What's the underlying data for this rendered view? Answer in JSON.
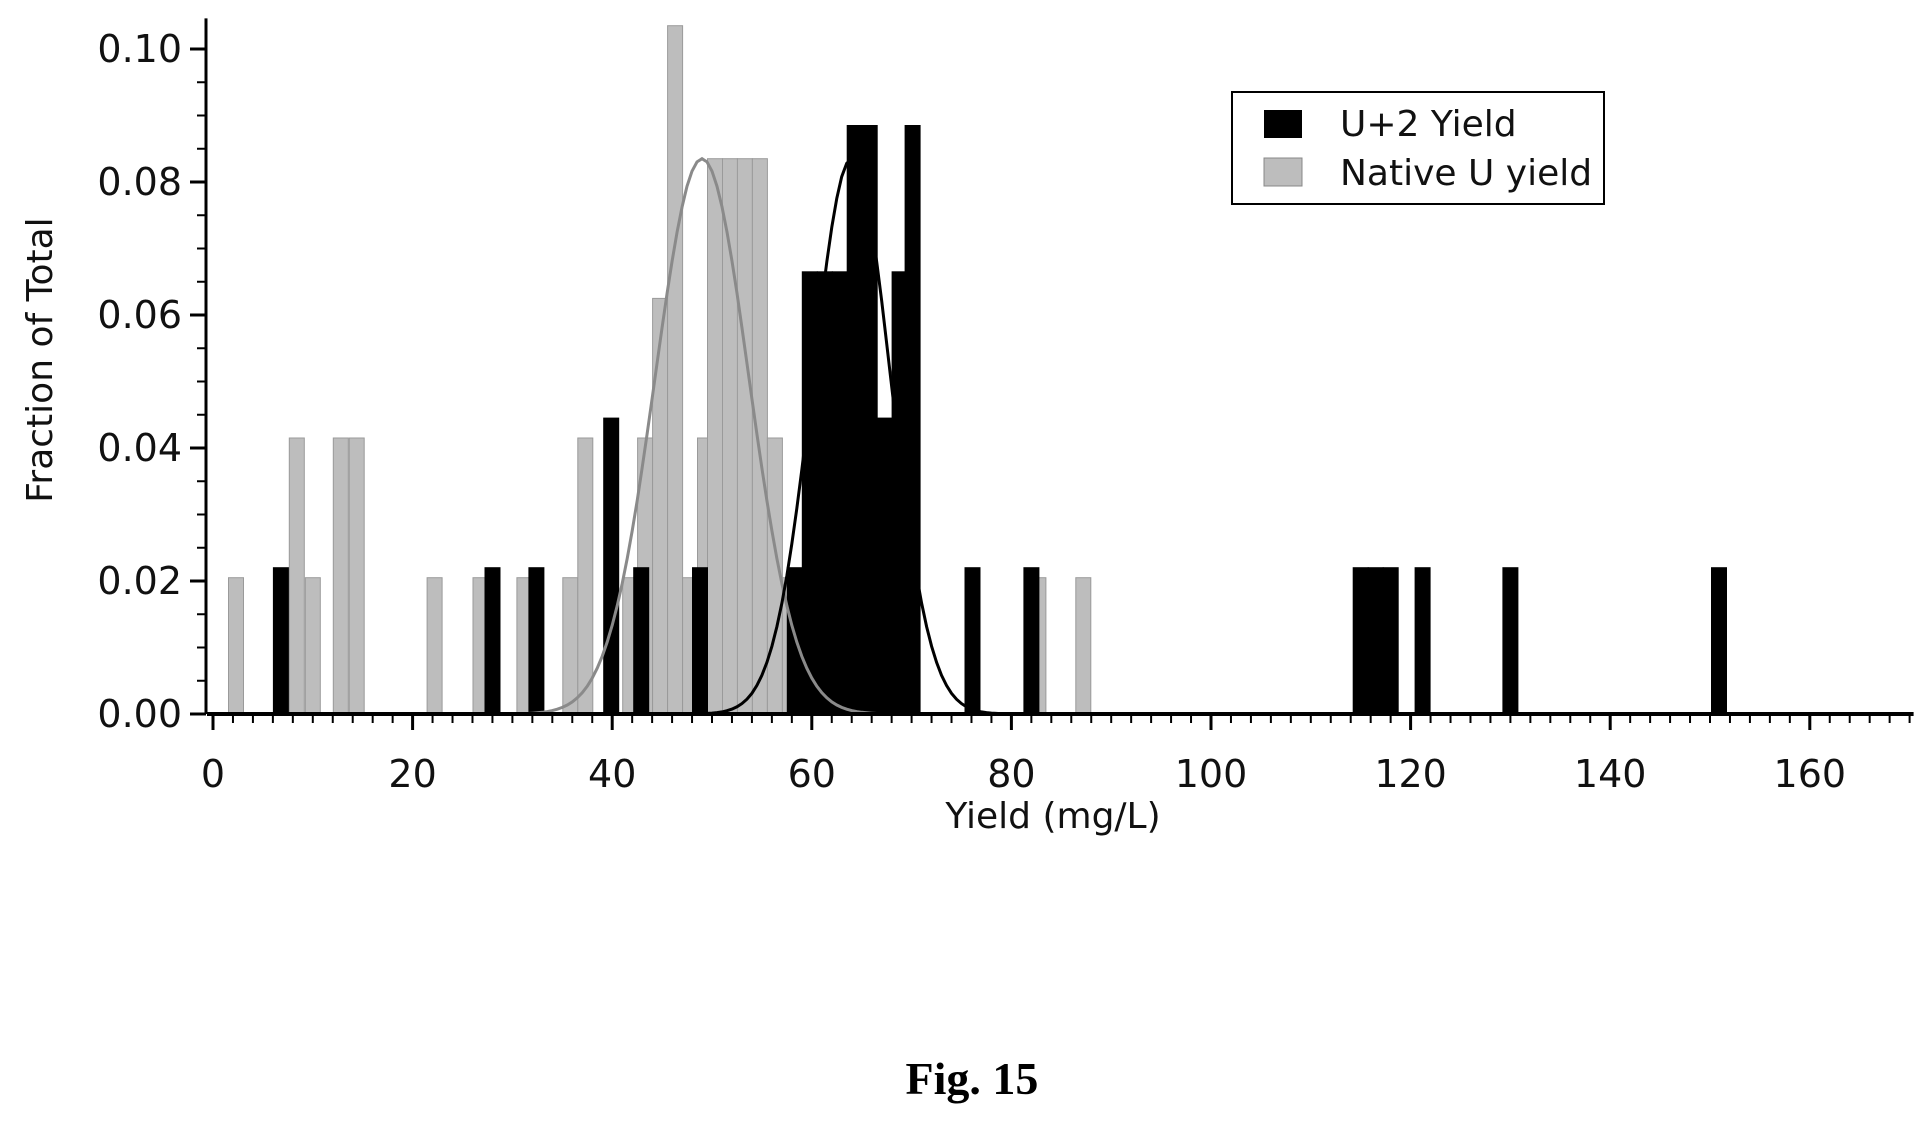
{
  "chart_data": {
    "type": "bar",
    "title": "",
    "xlabel": "Yield (mg/L)",
    "ylabel": "Fraction of Total",
    "xlim": [
      0,
      170
    ],
    "ylim": [
      0,
      0.104
    ],
    "x_ticks": [
      0,
      20,
      40,
      60,
      80,
      100,
      120,
      140,
      160
    ],
    "x_tick_labels": [
      "0",
      "20",
      "40",
      "60",
      "80",
      "100",
      "120",
      "140",
      "160"
    ],
    "y_ticks": [
      0.0,
      0.02,
      0.04,
      0.06,
      0.08,
      0.1
    ],
    "y_tick_labels": [
      "0.00",
      "0.02",
      "0.04",
      "0.06",
      "0.08",
      "0.10"
    ],
    "grid": false,
    "legend_position": "top-right",
    "series": [
      {
        "name": "Native U yield",
        "color": "#bdbdbd",
        "bin_width": 1.5,
        "bins": [
          {
            "x": 2.3,
            "y": 0.0205
          },
          {
            "x": 8.4,
            "y": 0.0415
          },
          {
            "x": 10.0,
            "y": 0.0205
          },
          {
            "x": 12.8,
            "y": 0.0415
          },
          {
            "x": 14.4,
            "y": 0.0415
          },
          {
            "x": 22.2,
            "y": 0.0205
          },
          {
            "x": 26.8,
            "y": 0.0205
          },
          {
            "x": 31.2,
            "y": 0.0205
          },
          {
            "x": 35.8,
            "y": 0.0205
          },
          {
            "x": 37.3,
            "y": 0.0415
          },
          {
            "x": 41.8,
            "y": 0.0205
          },
          {
            "x": 43.3,
            "y": 0.0415
          },
          {
            "x": 44.8,
            "y": 0.0625
          },
          {
            "x": 46.3,
            "y": 0.1035
          },
          {
            "x": 47.8,
            "y": 0.0205
          },
          {
            "x": 49.3,
            "y": 0.0415
          },
          {
            "x": 50.3,
            "y": 0.0835
          },
          {
            "x": 51.8,
            "y": 0.0835
          },
          {
            "x": 53.3,
            "y": 0.0835
          },
          {
            "x": 54.8,
            "y": 0.0835
          },
          {
            "x": 56.3,
            "y": 0.0415
          },
          {
            "x": 57.8,
            "y": 0.0205
          },
          {
            "x": 66.0,
            "y": 0.0205
          },
          {
            "x": 82.7,
            "y": 0.0205
          },
          {
            "x": 87.2,
            "y": 0.0205
          }
        ],
        "fit": {
          "type": "gaussian",
          "mean": 49.0,
          "sd": 4.7,
          "peak": 0.0835
        }
      },
      {
        "name": "U+2 Yield",
        "color": "#000000",
        "bin_width": 1.5,
        "bins": [
          {
            "x": 6.8,
            "y": 0.022
          },
          {
            "x": 28.0,
            "y": 0.022
          },
          {
            "x": 32.4,
            "y": 0.022
          },
          {
            "x": 39.9,
            "y": 0.0445
          },
          {
            "x": 42.9,
            "y": 0.022
          },
          {
            "x": 48.8,
            "y": 0.022
          },
          {
            "x": 58.3,
            "y": 0.022
          },
          {
            "x": 59.8,
            "y": 0.0665
          },
          {
            "x": 61.3,
            "y": 0.0665
          },
          {
            "x": 62.8,
            "y": 0.0665
          },
          {
            "x": 64.3,
            "y": 0.0885
          },
          {
            "x": 65.8,
            "y": 0.0885
          },
          {
            "x": 67.3,
            "y": 0.0445
          },
          {
            "x": 68.8,
            "y": 0.0665
          },
          {
            "x": 70.1,
            "y": 0.0885
          },
          {
            "x": 76.1,
            "y": 0.022
          },
          {
            "x": 82.0,
            "y": 0.022
          },
          {
            "x": 115.0,
            "y": 0.022
          },
          {
            "x": 116.5,
            "y": 0.022
          },
          {
            "x": 118.0,
            "y": 0.022
          },
          {
            "x": 121.2,
            "y": 0.022
          },
          {
            "x": 130.0,
            "y": 0.022
          },
          {
            "x": 150.9,
            "y": 0.022
          }
        ],
        "fit": {
          "type": "gaussian",
          "mean": 64.0,
          "sd": 3.9,
          "peak": 0.0835
        }
      }
    ],
    "legend": [
      "U+2 Yield",
      "Native U yield"
    ],
    "caption": "Fig. 15"
  }
}
